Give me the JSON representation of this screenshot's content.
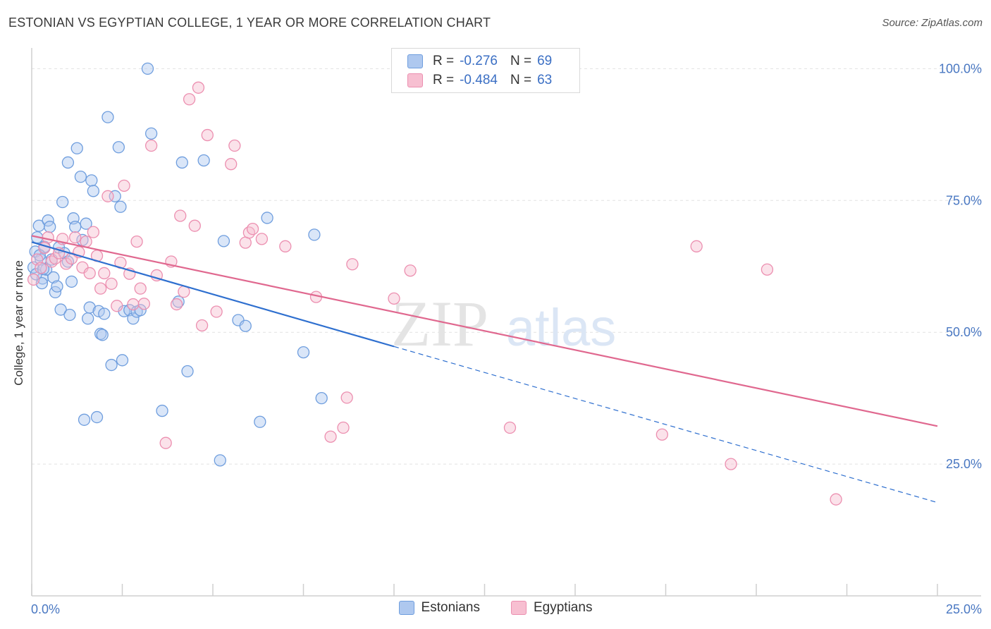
{
  "title": "ESTONIAN VS EGYPTIAN COLLEGE, 1 YEAR OR MORE CORRELATION CHART",
  "source": "Source: ZipAtlas.com",
  "watermark": {
    "zip": "ZIP",
    "atlas": "atlas"
  },
  "colors": {
    "blue_fill": "#aec8ef",
    "blue_stroke": "#6f9ede",
    "blue_line": "#2e6fcf",
    "pink_fill": "#f7bfd1",
    "pink_stroke": "#ec8fb0",
    "pink_line": "#e0688f",
    "grid": "#e2e2e2",
    "tick_text": "#4a78c2"
  },
  "legend": {
    "rows": [
      {
        "r_label": "R =",
        "r_value": "-0.276",
        "n_label": "N =",
        "n_value": "69"
      },
      {
        "r_label": "R =",
        "r_value": "-0.484",
        "n_label": "N =",
        "n_value": "63"
      }
    ],
    "bottom": [
      "Estonians",
      "Egyptians"
    ]
  },
  "chart_data": {
    "type": "scatter",
    "xlabel": "",
    "ylabel": "College, 1 year or more",
    "xlim": [
      0,
      25
    ],
    "ylim": [
      0,
      105
    ],
    "x_tick_labels": [
      "0.0%",
      "25.0%"
    ],
    "y_ticks": [
      25,
      50,
      75,
      100
    ],
    "y_tick_labels": [
      "25.0%",
      "50.0%",
      "75.0%",
      "100.0%"
    ],
    "grid": true,
    "legend_position": "top-center",
    "series": [
      {
        "name": "Estonians",
        "r": -0.276,
        "n": 69,
        "trend": {
          "x0": 0,
          "y0": 67.1,
          "x1": 10,
          "y1": 47.3,
          "dashed_to_x": 25,
          "dashed_to_y": 17.7
        },
        "points": [
          [
            0.1,
            65.3
          ],
          [
            0.15,
            68.0
          ],
          [
            0.2,
            70.2
          ],
          [
            0.25,
            63.8
          ],
          [
            0.3,
            60.2
          ],
          [
            0.35,
            66.2
          ],
          [
            0.4,
            61.9
          ],
          [
            0.45,
            71.2
          ],
          [
            0.5,
            70.0
          ],
          [
            0.55,
            63.8
          ],
          [
            0.6,
            60.4
          ],
          [
            0.65,
            57.6
          ],
          [
            0.7,
            58.7
          ],
          [
            0.75,
            66.1
          ],
          [
            0.8,
            54.3
          ],
          [
            0.85,
            74.7
          ],
          [
            0.9,
            65.0
          ],
          [
            1.0,
            82.2
          ],
          [
            1.05,
            53.3
          ],
          [
            1.1,
            59.6
          ],
          [
            1.15,
            71.6
          ],
          [
            1.2,
            70.0
          ],
          [
            1.25,
            84.9
          ],
          [
            1.35,
            79.5
          ],
          [
            1.4,
            67.5
          ],
          [
            1.45,
            33.4
          ],
          [
            1.5,
            70.6
          ],
          [
            1.55,
            52.6
          ],
          [
            1.6,
            54.7
          ],
          [
            1.65,
            78.8
          ],
          [
            1.7,
            76.8
          ],
          [
            1.8,
            33.9
          ],
          [
            1.85,
            54.0
          ],
          [
            1.9,
            49.7
          ],
          [
            1.95,
            49.5
          ],
          [
            2.0,
            53.5
          ],
          [
            2.1,
            90.8
          ],
          [
            2.2,
            43.8
          ],
          [
            2.3,
            75.8
          ],
          [
            2.4,
            85.1
          ],
          [
            2.45,
            73.8
          ],
          [
            2.5,
            44.7
          ],
          [
            2.55,
            54.0
          ],
          [
            2.7,
            54.2
          ],
          [
            2.8,
            52.6
          ],
          [
            2.9,
            53.9
          ],
          [
            3.2,
            100.0
          ],
          [
            3.3,
            87.7
          ],
          [
            3.6,
            35.1
          ],
          [
            4.05,
            55.8
          ],
          [
            4.15,
            82.2
          ],
          [
            4.3,
            42.6
          ],
          [
            4.75,
            82.6
          ],
          [
            5.2,
            25.7
          ],
          [
            5.3,
            67.3
          ],
          [
            5.7,
            52.3
          ],
          [
            5.9,
            51.2
          ],
          [
            6.3,
            33.0
          ],
          [
            6.5,
            71.7
          ],
          [
            7.5,
            46.2
          ],
          [
            7.8,
            68.5
          ],
          [
            8.0,
            37.5
          ],
          [
            0.05,
            62.3
          ],
          [
            0.12,
            61.0
          ],
          [
            0.22,
            64.6
          ],
          [
            0.28,
            59.3
          ],
          [
            0.32,
            62.0
          ],
          [
            1.0,
            63.4
          ],
          [
            3.0,
            54.2
          ]
        ]
      },
      {
        "name": "Egyptians",
        "r": -0.484,
        "n": 63,
        "trend": {
          "x0": 0,
          "y0": 68.3,
          "x1": 25,
          "y1": 32.2
        },
        "points": [
          [
            0.05,
            60.0
          ],
          [
            0.15,
            63.8
          ],
          [
            0.25,
            62.2
          ],
          [
            0.35,
            66.0
          ],
          [
            0.45,
            68.0
          ],
          [
            0.55,
            63.4
          ],
          [
            0.65,
            64.0
          ],
          [
            0.75,
            65.0
          ],
          [
            0.85,
            67.7
          ],
          [
            0.95,
            63.0
          ],
          [
            1.1,
            64.0
          ],
          [
            1.2,
            68.0
          ],
          [
            1.3,
            65.2
          ],
          [
            1.4,
            62.3
          ],
          [
            1.5,
            67.2
          ],
          [
            1.6,
            61.2
          ],
          [
            1.7,
            69.0
          ],
          [
            1.8,
            64.5
          ],
          [
            1.9,
            58.3
          ],
          [
            2.0,
            61.2
          ],
          [
            2.1,
            75.8
          ],
          [
            2.2,
            59.2
          ],
          [
            2.35,
            55.0
          ],
          [
            2.45,
            63.2
          ],
          [
            2.55,
            77.8
          ],
          [
            2.7,
            61.1
          ],
          [
            2.8,
            55.3
          ],
          [
            2.9,
            67.2
          ],
          [
            3.0,
            58.3
          ],
          [
            3.1,
            55.4
          ],
          [
            3.3,
            85.4
          ],
          [
            3.45,
            60.8
          ],
          [
            3.7,
            29.0
          ],
          [
            3.85,
            63.4
          ],
          [
            4.0,
            55.3
          ],
          [
            4.1,
            72.1
          ],
          [
            4.2,
            57.7
          ],
          [
            4.35,
            94.2
          ],
          [
            4.5,
            70.2
          ],
          [
            4.6,
            96.4
          ],
          [
            4.7,
            51.3
          ],
          [
            4.85,
            87.4
          ],
          [
            5.1,
            53.9
          ],
          [
            5.5,
            81.9
          ],
          [
            5.6,
            85.4
          ],
          [
            5.9,
            67.0
          ],
          [
            6.0,
            68.9
          ],
          [
            6.1,
            69.6
          ],
          [
            6.35,
            67.7
          ],
          [
            7.0,
            66.3
          ],
          [
            7.85,
            56.7
          ],
          [
            8.25,
            30.2
          ],
          [
            8.6,
            31.9
          ],
          [
            8.7,
            37.6
          ],
          [
            8.85,
            62.9
          ],
          [
            10.0,
            56.4
          ],
          [
            10.45,
            61.7
          ],
          [
            13.2,
            31.9
          ],
          [
            17.4,
            30.6
          ],
          [
            18.35,
            66.3
          ],
          [
            19.3,
            25.0
          ],
          [
            20.3,
            61.9
          ],
          [
            22.2,
            18.3
          ]
        ]
      }
    ]
  }
}
